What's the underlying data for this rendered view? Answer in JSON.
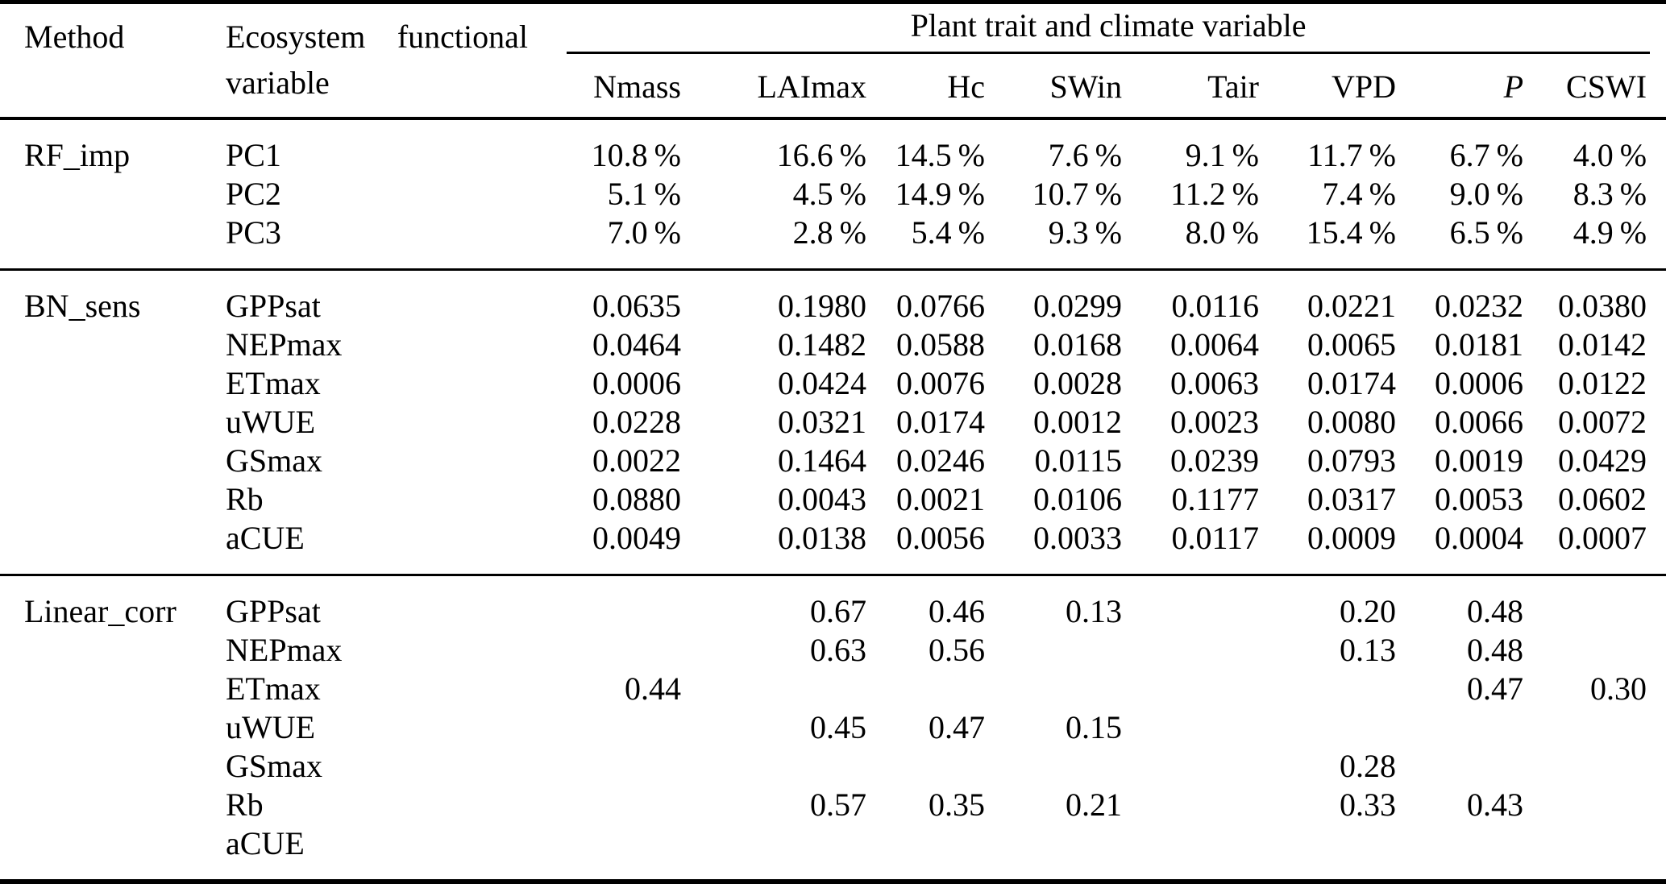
{
  "page": {
    "background": "#ffffff",
    "text_color": "#000000",
    "rule_color": "#000000"
  },
  "table": {
    "method_header": "Method",
    "variable_header": "Ecosystem functional variable",
    "span_header": "Plant trait and climate variable",
    "columns": [
      "Nmass",
      "LAImax",
      "Hc",
      "SWin",
      "Tair",
      "VPD",
      "P",
      "CSWI"
    ],
    "italic_columns": [
      "P"
    ],
    "sections": [
      {
        "method": "RF_imp",
        "rows": [
          {
            "variable": "PC1",
            "values": [
              "10.8 %",
              "16.6 %",
              "14.5 %",
              "7.6 %",
              "9.1 %",
              "11.7 %",
              "6.7 %",
              "4.0 %"
            ]
          },
          {
            "variable": "PC2",
            "values": [
              "5.1 %",
              "4.5 %",
              "14.9 %",
              "10.7 %",
              "11.2 %",
              "7.4 %",
              "9.0 %",
              "8.3 %"
            ]
          },
          {
            "variable": "PC3",
            "values": [
              "7.0 %",
              "2.8 %",
              "5.4 %",
              "9.3 %",
              "8.0 %",
              "15.4 %",
              "6.5 %",
              "4.9 %"
            ]
          }
        ]
      },
      {
        "method": "BN_sens",
        "rows": [
          {
            "variable": "GPPsat",
            "values": [
              "0.0635",
              "0.1980",
              "0.0766",
              "0.0299",
              "0.0116",
              "0.0221",
              "0.0232",
              "0.0380"
            ]
          },
          {
            "variable": "NEPmax",
            "values": [
              "0.0464",
              "0.1482",
              "0.0588",
              "0.0168",
              "0.0064",
              "0.0065",
              "0.0181",
              "0.0142"
            ]
          },
          {
            "variable": "ETmax",
            "values": [
              "0.0006",
              "0.0424",
              "0.0076",
              "0.0028",
              "0.0063",
              "0.0174",
              "0.0006",
              "0.0122"
            ]
          },
          {
            "variable": "uWUE",
            "values": [
              "0.0228",
              "0.0321",
              "0.0174",
              "0.0012",
              "0.0023",
              "0.0080",
              "0.0066",
              "0.0072"
            ]
          },
          {
            "variable": "GSmax",
            "values": [
              "0.0022",
              "0.1464",
              "0.0246",
              "0.0115",
              "0.0239",
              "0.0793",
              "0.0019",
              "0.0429"
            ]
          },
          {
            "variable": "Rb",
            "values": [
              "0.0880",
              "0.0043",
              "0.0021",
              "0.0106",
              "0.1177",
              "0.0317",
              "0.0053",
              "0.0602"
            ]
          },
          {
            "variable": "aCUE",
            "values": [
              "0.0049",
              "0.0138",
              "0.0056",
              "0.0033",
              "0.0117",
              "0.0009",
              "0.0004",
              "0.0007"
            ]
          }
        ]
      },
      {
        "method": "Linear_corr",
        "rows": [
          {
            "variable": "GPPsat",
            "values": [
              "",
              "0.67",
              "0.46",
              "0.13",
              "",
              "0.20",
              "0.48",
              ""
            ]
          },
          {
            "variable": "NEPmax",
            "values": [
              "",
              "0.63",
              "0.56",
              "",
              "",
              "0.13",
              "0.48",
              ""
            ]
          },
          {
            "variable": "ETmax",
            "values": [
              "0.44",
              "",
              "",
              "",
              "",
              "",
              "0.47",
              "0.30"
            ]
          },
          {
            "variable": "uWUE",
            "values": [
              "",
              "0.45",
              "0.47",
              "0.15",
              "",
              "",
              "",
              ""
            ]
          },
          {
            "variable": "GSmax",
            "values": [
              "",
              "",
              "",
              "",
              "",
              "0.28",
              "",
              ""
            ]
          },
          {
            "variable": "Rb",
            "values": [
              "",
              "0.57",
              "0.35",
              "0.21",
              "",
              "0.33",
              "0.43",
              ""
            ]
          },
          {
            "variable": "aCUE",
            "values": [
              "",
              "",
              "",
              "",
              "",
              "",
              "",
              ""
            ]
          }
        ]
      }
    ]
  }
}
